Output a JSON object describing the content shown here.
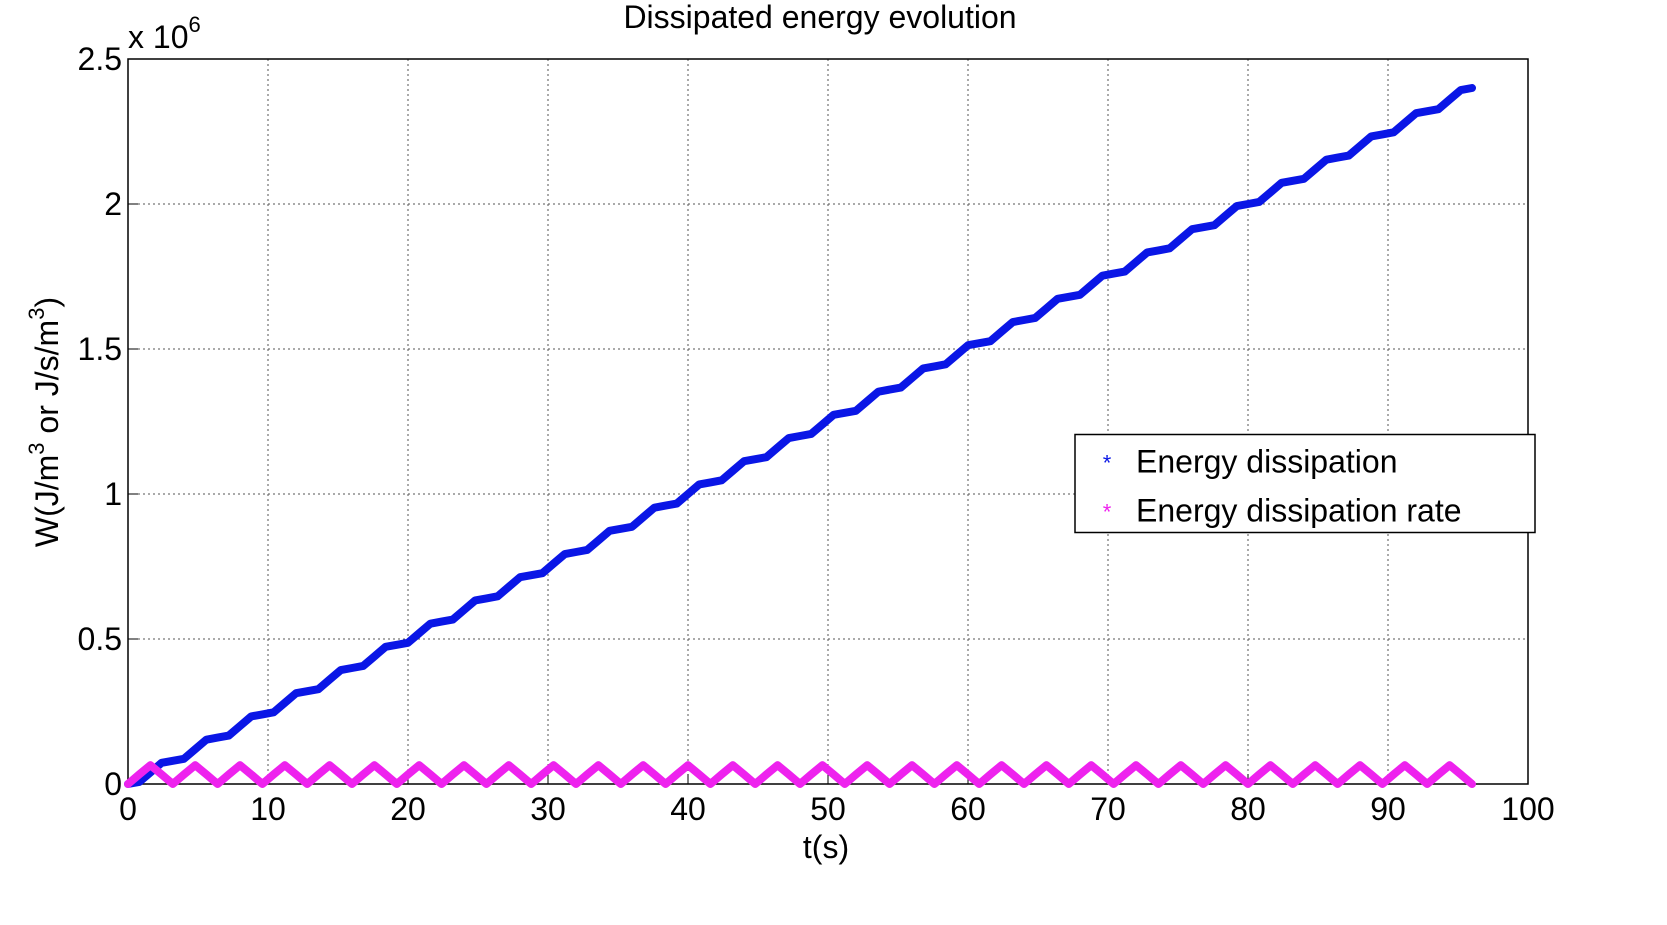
{
  "chart_data": {
    "type": "line",
    "title": "Dissipated energy evolution",
    "xlabel": "t(s)",
    "ylabel": [
      "W(J/m",
      "3",
      " or J/s/m",
      "3",
      ")"
    ],
    "y_multiplier": {
      "base": "x 10",
      "exponent": "6"
    },
    "xlim": [
      0,
      100
    ],
    "xticks": [
      0,
      10,
      20,
      30,
      40,
      50,
      60,
      70,
      80,
      90,
      100
    ],
    "ylim": [
      0,
      2.5
    ],
    "yticks": [
      0,
      0.5,
      1,
      1.5,
      2,
      2.5
    ],
    "grid": true,
    "legend": "east",
    "x": [
      0,
      0.8,
      1.6,
      2.4,
      3.2,
      4,
      4.8,
      5.6,
      6.4,
      7.2,
      8,
      8.8,
      9.6,
      10.4,
      11.2,
      12,
      12.8,
      13.6,
      14.4,
      15.2,
      16,
      16.8,
      17.6,
      18.4,
      19.2,
      20,
      20.8,
      21.6,
      22.4,
      23.2,
      24,
      24.8,
      25.6,
      26.4,
      27.2,
      28,
      28.8,
      29.6,
      30.4,
      31.2,
      32,
      32.8,
      33.6,
      34.4,
      35.2,
      36,
      36.8,
      37.6,
      38.4,
      39.2,
      40,
      40.8,
      41.6,
      42.4,
      43.2,
      44,
      44.8,
      45.6,
      46.4,
      47.2,
      48,
      48.8,
      49.6,
      50.4,
      51.2,
      52,
      52.8,
      53.6,
      54.4,
      55.2,
      56,
      56.8,
      57.6,
      58.4,
      59.2,
      60,
      60.8,
      61.6,
      62.4,
      63.2,
      64,
      64.8,
      65.6,
      66.4,
      67.2,
      68,
      68.8,
      69.6,
      70.4,
      71.2,
      72,
      72.8,
      73.6,
      74.4,
      75.2,
      76,
      76.8,
      77.6,
      78.4,
      79.2,
      80,
      80.8,
      81.6,
      82.4,
      83.2,
      84,
      84.8,
      85.6,
      86.4,
      87.2,
      88,
      88.8,
      89.6,
      90.4,
      91.2,
      92,
      92.8,
      93.6,
      94.4,
      95.2,
      96
    ],
    "series": [
      {
        "name": "Energy dissipation",
        "color": "#0a16e6",
        "values": [
          0,
          0.007,
          0.04,
          0.073,
          0.08,
          0.087,
          0.12,
          0.153,
          0.16,
          0.167,
          0.2,
          0.233,
          0.24,
          0.247,
          0.28,
          0.313,
          0.32,
          0.327,
          0.36,
          0.393,
          0.4,
          0.407,
          0.44,
          0.473,
          0.48,
          0.487,
          0.52,
          0.553,
          0.56,
          0.567,
          0.6,
          0.633,
          0.64,
          0.647,
          0.68,
          0.713,
          0.72,
          0.727,
          0.76,
          0.793,
          0.8,
          0.807,
          0.84,
          0.873,
          0.88,
          0.887,
          0.92,
          0.953,
          0.96,
          0.967,
          1,
          1.033,
          1.04,
          1.047,
          1.08,
          1.113,
          1.12,
          1.127,
          1.16,
          1.193,
          1.2,
          1.207,
          1.24,
          1.273,
          1.28,
          1.287,
          1.32,
          1.353,
          1.36,
          1.367,
          1.4,
          1.433,
          1.44,
          1.447,
          1.48,
          1.513,
          1.52,
          1.527,
          1.56,
          1.593,
          1.6,
          1.607,
          1.64,
          1.673,
          1.68,
          1.687,
          1.72,
          1.753,
          1.76,
          1.767,
          1.8,
          1.833,
          1.84,
          1.847,
          1.88,
          1.913,
          1.92,
          1.927,
          1.96,
          1.993,
          2,
          2.007,
          2.04,
          2.073,
          2.08,
          2.087,
          2.12,
          2.153,
          2.16,
          2.167,
          2.2,
          2.233,
          2.24,
          2.247,
          2.28,
          2.313,
          2.32,
          2.327,
          2.36,
          2.393,
          2.4
        ]
      },
      {
        "name": "Energy dissipation rate",
        "color": "#ee22ee",
        "values": [
          0,
          0.033,
          0.065,
          0.033,
          0,
          0.033,
          0.065,
          0.033,
          0,
          0.033,
          0.065,
          0.033,
          0,
          0.033,
          0.065,
          0.033,
          0,
          0.033,
          0.065,
          0.033,
          0,
          0.033,
          0.065,
          0.033,
          0,
          0.033,
          0.065,
          0.033,
          0,
          0.033,
          0.065,
          0.033,
          0,
          0.033,
          0.065,
          0.033,
          0,
          0.033,
          0.065,
          0.033,
          0,
          0.033,
          0.065,
          0.033,
          0,
          0.033,
          0.065,
          0.033,
          0,
          0.033,
          0.065,
          0.033,
          0,
          0.033,
          0.065,
          0.033,
          0,
          0.033,
          0.065,
          0.033,
          0,
          0.033,
          0.065,
          0.033,
          0,
          0.033,
          0.065,
          0.033,
          0,
          0.033,
          0.065,
          0.033,
          0,
          0.033,
          0.065,
          0.033,
          0,
          0.033,
          0.065,
          0.033,
          0,
          0.033,
          0.065,
          0.033,
          0,
          0.033,
          0.065,
          0.033,
          0,
          0.033,
          0.065,
          0.033,
          0,
          0.033,
          0.065,
          0.033,
          0,
          0.033,
          0.065,
          0.033,
          0,
          0.033,
          0.065,
          0.033,
          0,
          0.033,
          0.065,
          0.033,
          0,
          0.033,
          0.065,
          0.033,
          0,
          0.033,
          0.065,
          0.033,
          0,
          0.033,
          0.065,
          0.033,
          0
        ]
      }
    ]
  }
}
